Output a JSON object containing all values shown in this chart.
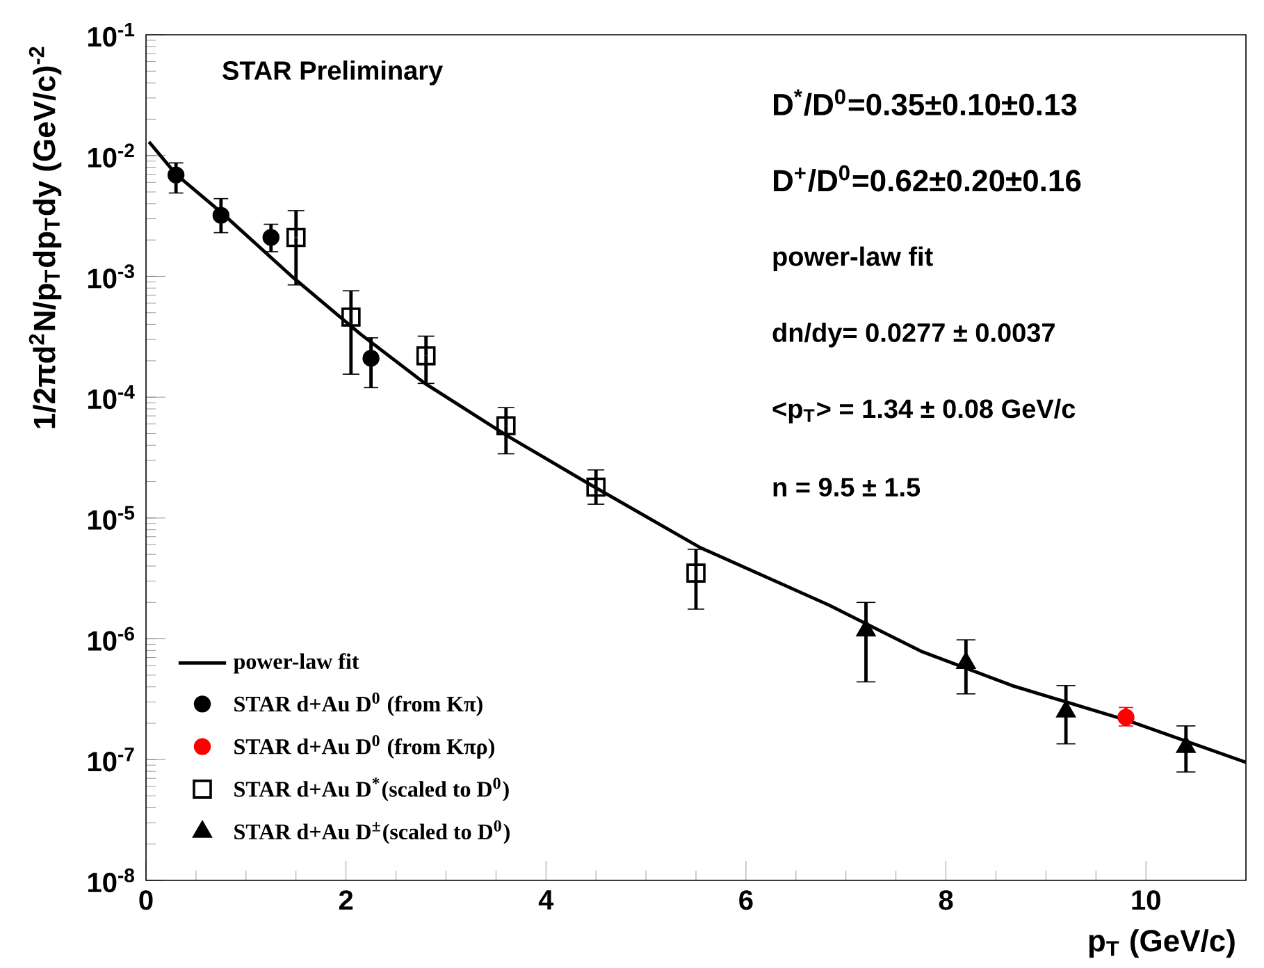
{
  "chart_data": {
    "type": "scatter",
    "xlabel": "p$_{T}$ (GeV/c)",
    "ylabel": "1/2πd$^{2}$N/p$_{T}$dp$_{T}$dy (GeV/c)$^{-2}$",
    "log": "y",
    "xlim": [
      0,
      11
    ],
    "ylim": [
      1e-08,
      0.1
    ],
    "xticks": [
      0,
      2,
      4,
      6,
      8,
      10
    ],
    "yticks": [
      {
        "value": 1e-08,
        "label": "10$^{-8}$"
      },
      {
        "value": 1e-07,
        "label": "10$^{-7}$"
      },
      {
        "value": 1e-06,
        "label": "10$^{-6}$"
      },
      {
        "value": 1e-05,
        "label": "10$^{-5}$"
      },
      {
        "value": 0.0001,
        "label": "10$^{-4}$"
      },
      {
        "value": 0.001,
        "label": "10$^{-3}$"
      },
      {
        "value": 0.01,
        "label": "10$^{-2}$"
      },
      {
        "value": 0.1,
        "label": "10$^{-1}$"
      }
    ],
    "legend": "bottom left",
    "grid": false,
    "annotations": [
      "STAR Preliminary",
      "D$^{*}$/D$^{0}$=0.35±0.10±0.13",
      "D$^{+}$/D$^{0}$=0.62±0.20±0.16",
      "power-law fit",
      "dn/dy= 0.0277 ± 0.0037",
      "<p$_{T}$> = 1.34 ± 0.08 GeV/c",
      "n = 9.5 ± 1.5"
    ],
    "series": [
      {
        "name": "power-law fit",
        "type": "line",
        "color": "#000000",
        "marker": "none",
        "line_style": "solid",
        "x": [
          0.03,
          0.3,
          0.75,
          1.47,
          2.14,
          2.79,
          3.61,
          4.41,
          5.54,
          6.83,
          7.75,
          8.66,
          9.82,
          11.0
        ],
        "values": [
          0.013,
          0.007,
          0.0034,
          0.00098,
          0.000335,
          0.00013,
          4.8e-05,
          1.96e-05,
          5.7e-06,
          1.9e-06,
          7.9e-07,
          4.1e-07,
          2.1e-07,
          9.5e-08
        ]
      },
      {
        "name": "STAR d+Au D$^{0}$ (from Kπ)",
        "color": "#000000",
        "marker": "circle",
        "x": [
          0.3,
          0.75,
          1.25,
          2.25
        ],
        "values": [
          0.0069,
          0.0032,
          0.0021,
          0.00021
        ],
        "errors": [
          [
            0.0049,
            0.0087
          ],
          [
            0.0023,
            0.0044
          ],
          [
            0.0016,
            0.0027
          ],
          [
            0.00012,
            0.00031
          ]
        ]
      },
      {
        "name": "STAR d+Au D$^{0}$ (from Kπρ)",
        "color": "#ff0000",
        "marker": "circle",
        "x": [
          9.8
        ],
        "values": [
          2.24e-07
        ],
        "errors": [
          [
            1.9e-07,
            2.7e-07
          ]
        ]
      },
      {
        "name": "STAR d+Au D$^{*}$(scaled to D$^{0}$)",
        "color": "#000000",
        "marker": "square",
        "x": [
          1.5,
          2.05,
          2.8,
          3.6,
          4.5,
          5.5
        ],
        "values": [
          0.0021,
          0.00046,
          0.00022,
          5.8e-05,
          1.8e-05,
          3.5e-06
        ],
        "errors": [
          [
            0.00085,
            0.0035
          ],
          [
            0.000155,
            0.00076
          ],
          [
            0.00013,
            0.00032
          ],
          [
            3.4e-05,
            8.2e-05
          ],
          [
            1.3e-05,
            2.5e-05
          ],
          [
            1.76e-06,
            5.5e-06
          ]
        ]
      },
      {
        "name": "STAR d+Au D$^{±}$(scaled to D$^{0}$)",
        "color": "#000000",
        "marker": "triangle",
        "x": [
          7.2,
          8.2,
          9.2,
          10.4
        ],
        "values": [
          1.17e-06,
          6.3e-07,
          2.5e-07,
          1.27e-07
        ],
        "errors": [
          [
            4.4e-07,
            2e-06
          ],
          [
            3.5e-07,
            9.8e-07
          ],
          [
            1.35e-07,
            4.1e-07
          ],
          [
            7.9e-08,
            1.9e-07
          ]
        ]
      }
    ]
  }
}
